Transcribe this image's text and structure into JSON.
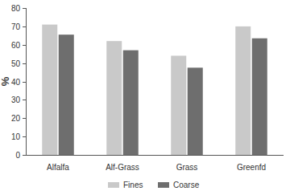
{
  "chart_data": {
    "type": "bar",
    "y_label": "%",
    "categories": [
      "Alfalfa",
      "Alf-Grass",
      "Grass",
      "Greenfd"
    ],
    "series": [
      {
        "name": "Fines",
        "color": "#c9c9c9",
        "values": [
          71,
          62,
          54,
          70
        ]
      },
      {
        "name": "Coarse",
        "color": "#6e6e6e",
        "values": [
          65.5,
          57,
          47.5,
          63.5
        ]
      }
    ],
    "ylim": [
      0,
      80
    ],
    "yticks": [
      0,
      10,
      20,
      30,
      40,
      50,
      60,
      70,
      80
    ],
    "grid": false,
    "legend": "bottom"
  }
}
